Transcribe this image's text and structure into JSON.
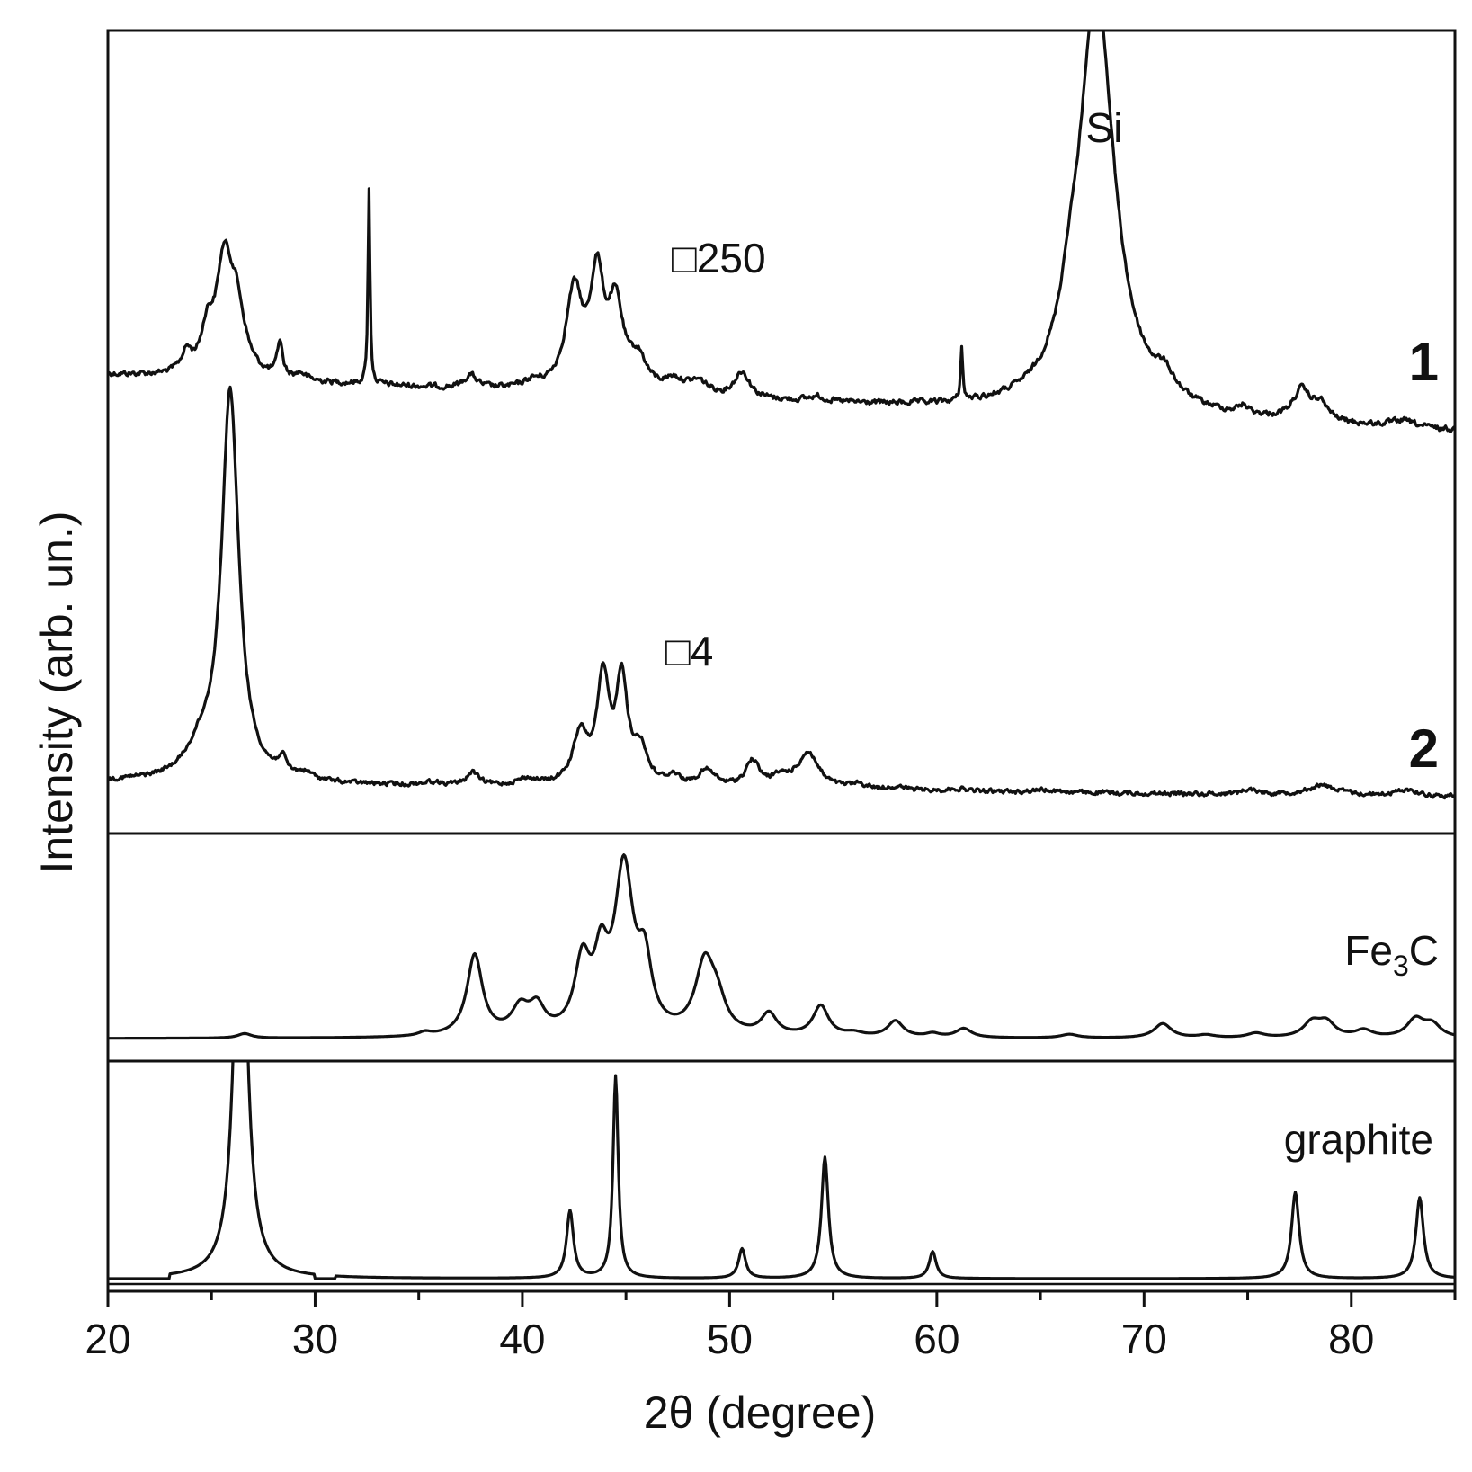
{
  "chart_data": {
    "type": "line",
    "title": "",
    "xlabel": "2θ (degree)",
    "ylabel": "Intensity (arb. un.)",
    "xlim": [
      20,
      85
    ],
    "xticks": [
      "20",
      "30",
      "40",
      "50",
      "60",
      "70",
      "80"
    ],
    "grid": false,
    "legend": "none",
    "panels": [
      {
        "name": "samples",
        "series": [
          {
            "label": "1",
            "scale_label": "□250",
            "base": 0.05,
            "peaks": [
              [
                23.8,
                0.06,
                0.3
              ],
              [
                24.8,
                0.12,
                0.35
              ],
              [
                25.6,
                0.32,
                0.45
              ],
              [
                26.2,
                0.2,
                0.5
              ],
              [
                28.3,
                0.11,
                0.15
              ],
              [
                29.3,
                0.02,
                0.3
              ],
              [
                32.6,
                0.6,
                0.06
              ],
              [
                37.5,
                0.04,
                0.35
              ],
              [
                40.5,
                0.02,
                0.5
              ],
              [
                42.5,
                0.3,
                0.5
              ],
              [
                43.6,
                0.33,
                0.38
              ],
              [
                44.5,
                0.25,
                0.45
              ],
              [
                45.6,
                0.09,
                0.5
              ],
              [
                47.3,
                0.04,
                0.6
              ],
              [
                48.5,
                0.04,
                0.6
              ],
              [
                50.6,
                0.08,
                0.45
              ],
              [
                54.2,
                0.015,
                0.5
              ],
              [
                61.2,
                0.17,
                0.06
              ],
              [
                66.4,
                0.1,
                0.5
              ],
              [
                67.7,
                1.3,
                1.05
              ],
              [
                71.0,
                0.06,
                0.6
              ],
              [
                74.8,
                0.025,
                0.3
              ],
              [
                77.6,
                0.09,
                0.5
              ],
              [
                78.5,
                0.05,
                0.45
              ],
              [
                82.5,
                0.02,
                0.7
              ]
            ],
            "annotations": [
              {
                "text": "Si",
                "x": 67.8
              }
            ]
          },
          {
            "label": "2",
            "scale_label": "□4",
            "base": 0.02,
            "peaks": [
              [
                21.0,
                0.005,
                2.0
              ],
              [
                24.5,
                0.08,
                0.9
              ],
              [
                25.9,
                1.2,
                0.5
              ],
              [
                28.4,
                0.05,
                0.22
              ],
              [
                29.5,
                0.02,
                0.5
              ],
              [
                35.6,
                0.01,
                0.5
              ],
              [
                37.6,
                0.04,
                0.35
              ],
              [
                40.2,
                0.02,
                0.6
              ],
              [
                42.8,
                0.15,
                0.45
              ],
              [
                43.9,
                0.32,
                0.35
              ],
              [
                44.8,
                0.32,
                0.32
              ],
              [
                45.7,
                0.11,
                0.4
              ],
              [
                47.3,
                0.03,
                0.4
              ],
              [
                48.9,
                0.05,
                0.5
              ],
              [
                51.1,
                0.08,
                0.4
              ],
              [
                52.5,
                0.03,
                0.6
              ],
              [
                53.8,
                0.11,
                0.6
              ],
              [
                56.2,
                0.015,
                0.5
              ],
              [
                58.0,
                0.01,
                0.6
              ],
              [
                61.0,
                0.008,
                0.6
              ],
              [
                65.2,
                0.008,
                0.8
              ],
              [
                75.1,
                0.015,
                0.5
              ],
              [
                78.6,
                0.03,
                0.9
              ],
              [
                82.7,
                0.02,
                0.6
              ]
            ]
          }
        ]
      },
      {
        "name": "Fe3C reference",
        "label": "Fe",
        "label_sub": "3",
        "label_end": "C",
        "peaks": [
          [
            26.6,
            0.025,
            0.4
          ],
          [
            35.3,
            0.02,
            0.35
          ],
          [
            37.7,
            0.45,
            0.45
          ],
          [
            39.9,
            0.14,
            0.5
          ],
          [
            40.7,
            0.14,
            0.45
          ],
          [
            42.9,
            0.38,
            0.45
          ],
          [
            43.8,
            0.35,
            0.4
          ],
          [
            44.9,
            0.9,
            0.55
          ],
          [
            45.9,
            0.34,
            0.4
          ],
          [
            48.8,
            0.38,
            0.55
          ],
          [
            49.4,
            0.15,
            0.5
          ],
          [
            51.9,
            0.12,
            0.45
          ],
          [
            54.4,
            0.17,
            0.45
          ],
          [
            56.0,
            0.02,
            0.5
          ],
          [
            58.0,
            0.09,
            0.45
          ],
          [
            59.8,
            0.02,
            0.4
          ],
          [
            61.3,
            0.05,
            0.45
          ],
          [
            66.4,
            0.02,
            0.5
          ],
          [
            70.9,
            0.08,
            0.5
          ],
          [
            73.0,
            0.015,
            0.5
          ],
          [
            75.4,
            0.025,
            0.5
          ],
          [
            78.1,
            0.08,
            0.5
          ],
          [
            78.8,
            0.08,
            0.5
          ],
          [
            80.6,
            0.04,
            0.5
          ],
          [
            83.1,
            0.1,
            0.5
          ],
          [
            83.9,
            0.07,
            0.5
          ]
        ]
      },
      {
        "name": "graphite reference",
        "label": "graphite",
        "peaks": [
          [
            26.4,
            1.7,
            0.35
          ],
          [
            42.3,
            0.25,
            0.2
          ],
          [
            44.5,
            0.75,
            0.15
          ],
          [
            50.6,
            0.11,
            0.2
          ],
          [
            54.6,
            0.45,
            0.2
          ],
          [
            59.8,
            0.1,
            0.2
          ],
          [
            77.3,
            0.32,
            0.22
          ],
          [
            83.3,
            0.3,
            0.22
          ]
        ]
      }
    ],
    "sample_labels": [
      "1",
      "2"
    ],
    "text_labels": {
      "si": "Si",
      "scale1": "□250",
      "scale2": "□4",
      "fe": "Fe",
      "fe_sub": "3",
      "fe_end": "C",
      "graphite": "graphite"
    }
  }
}
